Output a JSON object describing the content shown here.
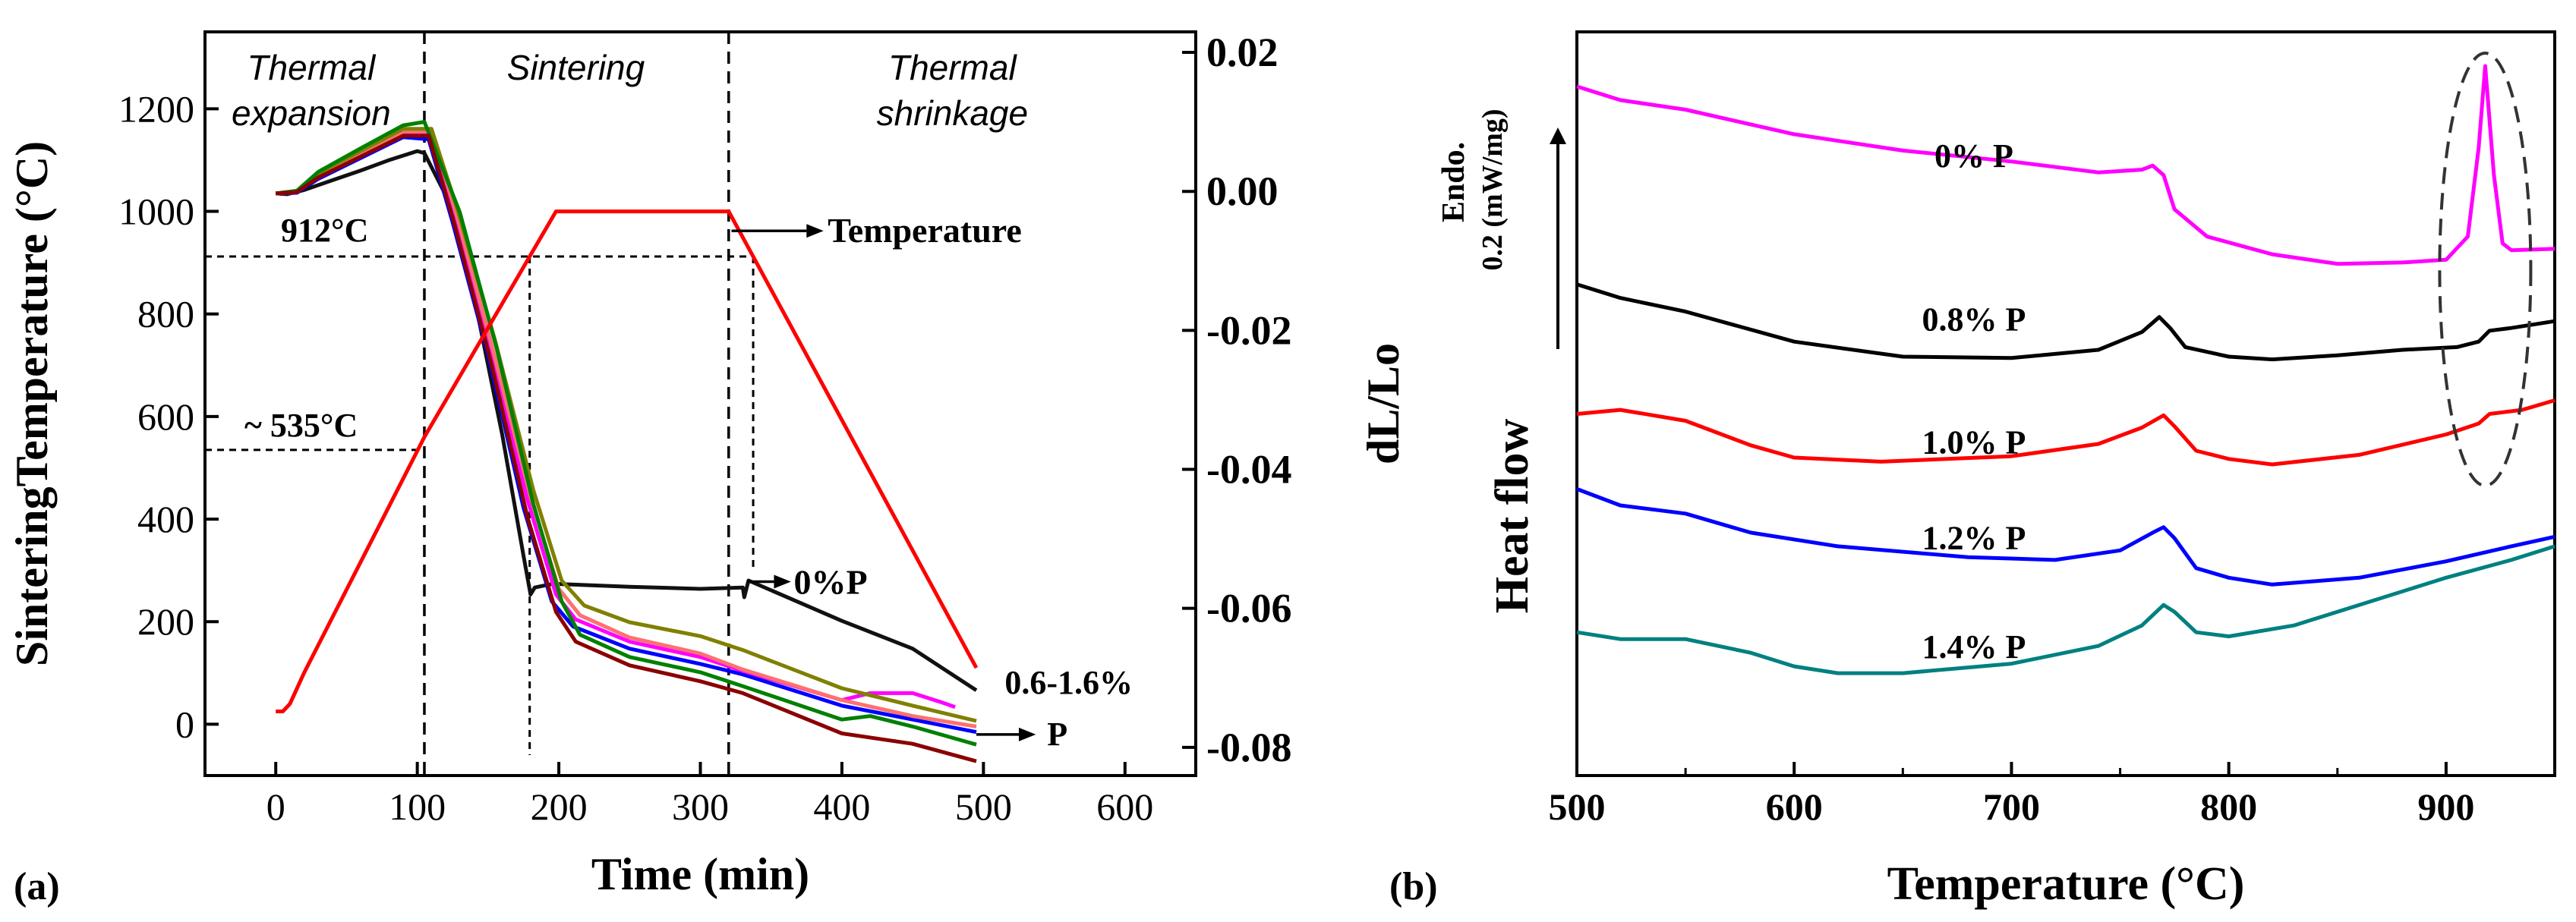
{
  "panel_labels": [
    "(a)",
    "(b)"
  ],
  "chart_data": [
    {
      "type": "line",
      "panel": "(a)",
      "xlabel": "Time (min)",
      "ylabel_left": "SinteringTemperature (°C)",
      "ylabel_right": "dL/Lo",
      "xlim": [
        -50,
        650
      ],
      "ylim_left": [
        -100,
        1350
      ],
      "ylim_right": [
        -0.08,
        0.02
      ],
      "x_ticks": [
        0,
        100,
        200,
        300,
        400,
        500,
        600
      ],
      "y_ticks_left": [
        0,
        200,
        400,
        600,
        800,
        1000,
        1200
      ],
      "y_ticks_right": [
        "0.02",
        "0.00",
        "-0.02",
        "-0.04",
        "-0.06",
        "-0.08"
      ],
      "y_ticks_right_values": [
        0.02,
        0.0,
        -0.02,
        -0.04,
        -0.06,
        -0.08
      ],
      "region_labels": [
        {
          "text": [
            "Thermal",
            "expansion"
          ],
          "x": 25
        },
        {
          "text": [
            "Sintering"
          ],
          "x": 212
        },
        {
          "text": [
            "Thermal",
            "shrinkage"
          ],
          "x": 478
        }
      ],
      "vertical_dashed_lines": [
        105,
        320
      ],
      "temperature_annotations": [
        {
          "label": "912°C",
          "temperature": 912
        },
        {
          "label": "~ 535°C",
          "temperature": 535
        }
      ],
      "arrow_labels": {
        "temperature": "Temperature",
        "zero_p": "0%P",
        "range": [
          "0.6-1.6%",
          "P"
        ]
      },
      "temperature_series": {
        "name": "Temperature",
        "color": "#ff0000",
        "x": [
          0,
          5,
          10,
          20,
          105,
          198,
          320,
          495
        ],
        "y": [
          25,
          25,
          40,
          100,
          560,
          1000,
          1000,
          110
        ]
      },
      "shrinkage_series": [
        {
          "name": "0%P",
          "color": "#111111",
          "x": [
            0,
            8,
            20,
            40,
            60,
            80,
            100,
            105,
            120,
            140,
            160,
            175,
            180,
            183,
            195,
            200,
            250,
            300,
            330,
            331,
            334,
            400,
            450,
            495
          ],
          "y": [
            -0.0003,
            -0.0004,
            0.0002,
            0.0016,
            0.003,
            0.0045,
            0.0058,
            0.0055,
            -0.0005,
            -0.015,
            -0.035,
            -0.0524,
            -0.058,
            -0.057,
            -0.0565,
            -0.0565,
            -0.0569,
            -0.0572,
            -0.057,
            -0.0584,
            -0.056,
            -0.0618,
            -0.0658,
            -0.0718
          ]
        },
        {
          "name": "0.6% P",
          "color": "#0000ff",
          "x": [
            0,
            15,
            30,
            60,
            90,
            108,
            125,
            150,
            175,
            195,
            210,
            250,
            300,
            330,
            400,
            450,
            495
          ],
          "y": [
            -0.0003,
            -0.0002,
            0.0018,
            0.0048,
            0.0078,
            0.0075,
            -0.0045,
            -0.0235,
            -0.0455,
            -0.059,
            -0.0626,
            -0.0658,
            -0.068,
            -0.0695,
            -0.074,
            -0.076,
            -0.0778
          ]
        },
        {
          "name": "0.8% P",
          "color": "#ff00ff",
          "x": [
            0,
            15,
            30,
            60,
            90,
            110,
            127,
            152,
            178,
            198,
            212,
            250,
            300,
            330,
            400,
            420,
            450,
            470,
            480
          ],
          "y": [
            -0.0003,
            -0.0001,
            0.0022,
            0.0052,
            0.0082,
            0.0082,
            -0.004,
            -0.023,
            -0.0445,
            -0.058,
            -0.0616,
            -0.0648,
            -0.067,
            -0.069,
            -0.0732,
            -0.0722,
            -0.0722,
            -0.0735,
            -0.0742
          ]
        },
        {
          "name": "1.0% P",
          "color": "#ff7070",
          "x": [
            0,
            15,
            30,
            60,
            90,
            110,
            128,
            153,
            180,
            200,
            215,
            250,
            300,
            330,
            400,
            450,
            495
          ],
          "y": [
            -0.0003,
            -0.0001,
            0.0024,
            0.0055,
            0.0086,
            0.0086,
            -0.0035,
            -0.0225,
            -0.044,
            -0.0572,
            -0.061,
            -0.0642,
            -0.0665,
            -0.0688,
            -0.0732,
            -0.0755,
            -0.077
          ]
        },
        {
          "name": "1.2% P",
          "color": "#808000",
          "x": [
            0,
            15,
            30,
            60,
            90,
            110,
            129,
            155,
            182,
            202,
            218,
            250,
            300,
            330,
            400,
            450,
            495
          ],
          "y": [
            -0.0003,
            0.0,
            0.0026,
            0.0058,
            0.009,
            0.009,
            -0.003,
            -0.0215,
            -0.043,
            -0.056,
            -0.0596,
            -0.062,
            -0.064,
            -0.066,
            -0.0715,
            -0.074,
            -0.0762
          ]
        },
        {
          "name": "1.4% P",
          "color": "#008000",
          "x": [
            0,
            15,
            30,
            60,
            90,
            105,
            130,
            156,
            182,
            202,
            215,
            250,
            300,
            330,
            400,
            420,
            450,
            495
          ],
          "y": [
            -0.0003,
            0.0001,
            0.0028,
            0.0062,
            0.0095,
            0.01,
            -0.003,
            -0.0225,
            -0.045,
            -0.059,
            -0.0638,
            -0.067,
            -0.0692,
            -0.0712,
            -0.076,
            -0.0755,
            -0.077,
            -0.0796
          ]
        },
        {
          "name": "1.6% P",
          "color": "#8b0000",
          "x": [
            0,
            15,
            30,
            60,
            90,
            108,
            126,
            152,
            178,
            198,
            212,
            250,
            300,
            330,
            400,
            450,
            495
          ],
          "y": [
            -0.0003,
            -0.0001,
            0.002,
            0.005,
            0.008,
            0.008,
            -0.0045,
            -0.0245,
            -0.047,
            -0.0605,
            -0.0648,
            -0.0682,
            -0.0705,
            -0.0722,
            -0.078,
            -0.0795,
            -0.082
          ]
        }
      ]
    },
    {
      "type": "line",
      "panel": "(b)",
      "xlabel": "Temperature (°C)",
      "ylabel": "Heat flow",
      "scale_label": [
        "Endo.",
        "0.2 (mW/mg)"
      ],
      "xlim": [
        500,
        950
      ],
      "x_ticks": [
        500,
        600,
        700,
        800,
        900
      ],
      "y_range_arbitrary": [
        0,
        4.2
      ],
      "highlight": {
        "shape": "dashed-ellipse",
        "x_center": 918
      },
      "series": [
        {
          "name": "0% P",
          "label": "0% P",
          "color": "#ff00ff",
          "x": [
            500,
            520,
            550,
            600,
            650,
            700,
            740,
            760,
            765,
            770,
            775,
            790,
            820,
            850,
            880,
            900,
            910,
            915,
            918,
            922,
            926,
            930,
            950
          ],
          "y": [
            4.05,
            3.95,
            3.88,
            3.7,
            3.58,
            3.5,
            3.42,
            3.44,
            3.47,
            3.4,
            3.15,
            2.95,
            2.82,
            2.75,
            2.76,
            2.78,
            2.95,
            3.6,
            4.2,
            3.4,
            2.9,
            2.85,
            2.86
          ]
        },
        {
          "name": "0.8% P",
          "label": "0.8% P",
          "color": "#000000",
          "x": [
            500,
            520,
            550,
            600,
            650,
            700,
            740,
            760,
            768,
            773,
            780,
            800,
            820,
            850,
            880,
            905,
            915,
            920,
            930,
            950
          ],
          "y": [
            2.6,
            2.5,
            2.4,
            2.18,
            2.07,
            2.06,
            2.12,
            2.25,
            2.36,
            2.28,
            2.14,
            2.07,
            2.05,
            2.08,
            2.12,
            2.14,
            2.18,
            2.26,
            2.28,
            2.33
          ]
        },
        {
          "name": "1.0% P",
          "label": "1.0% P",
          "color": "#ff0000",
          "x": [
            500,
            520,
            550,
            580,
            600,
            640,
            700,
            740,
            760,
            770,
            775,
            785,
            800,
            820,
            860,
            900,
            915,
            920,
            935,
            950
          ],
          "y": [
            1.65,
            1.68,
            1.6,
            1.42,
            1.33,
            1.3,
            1.34,
            1.43,
            1.55,
            1.64,
            1.56,
            1.38,
            1.32,
            1.28,
            1.35,
            1.5,
            1.58,
            1.65,
            1.68,
            1.75
          ]
        },
        {
          "name": "1.2% P",
          "label": "1.2% P",
          "color": "#0000ff",
          "x": [
            500,
            520,
            550,
            580,
            620,
            680,
            720,
            750,
            765,
            770,
            775,
            785,
            800,
            820,
            860,
            900,
            930,
            950
          ],
          "y": [
            1.1,
            0.98,
            0.92,
            0.78,
            0.68,
            0.6,
            0.58,
            0.65,
            0.78,
            0.82,
            0.74,
            0.52,
            0.45,
            0.4,
            0.45,
            0.57,
            0.68,
            0.75
          ]
        },
        {
          "name": "1.4% P",
          "label": "1.4% P",
          "color": "#008080",
          "x": [
            500,
            520,
            550,
            580,
            600,
            620,
            650,
            700,
            740,
            760,
            770,
            775,
            785,
            800,
            830,
            860,
            900,
            930,
            950
          ],
          "y": [
            0.05,
            0.0,
            0.0,
            -0.1,
            -0.2,
            -0.25,
            -0.25,
            -0.18,
            -0.05,
            0.1,
            0.25,
            0.2,
            0.05,
            0.02,
            0.1,
            0.25,
            0.45,
            0.58,
            0.68
          ]
        }
      ]
    }
  ]
}
